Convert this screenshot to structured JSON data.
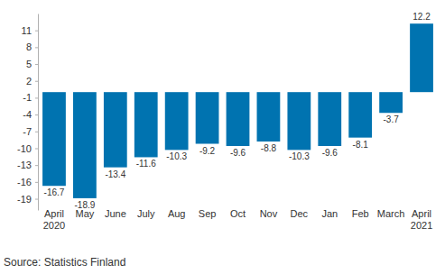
{
  "chart_data": {
    "type": "bar",
    "categories": [
      "April\n2020",
      "May",
      "June",
      "July",
      "Aug",
      "Sep",
      "Oct",
      "Nov",
      "Dec",
      "Jan",
      "Feb",
      "March",
      "April\n2021"
    ],
    "values": [
      -16.7,
      -18.9,
      -13.4,
      -11.6,
      -10.3,
      -9.2,
      -9.6,
      -8.8,
      -10.3,
      -9.6,
      -8.1,
      -3.7,
      12.2
    ],
    "color": "#0073b0",
    "ylim": [
      -21,
      14
    ],
    "yticks": [
      -19,
      -16,
      -13,
      -10,
      -7,
      -4,
      -1,
      2,
      5,
      8,
      11
    ],
    "grid": false,
    "data_labels": true,
    "source": "Source: Statistics Finland"
  }
}
